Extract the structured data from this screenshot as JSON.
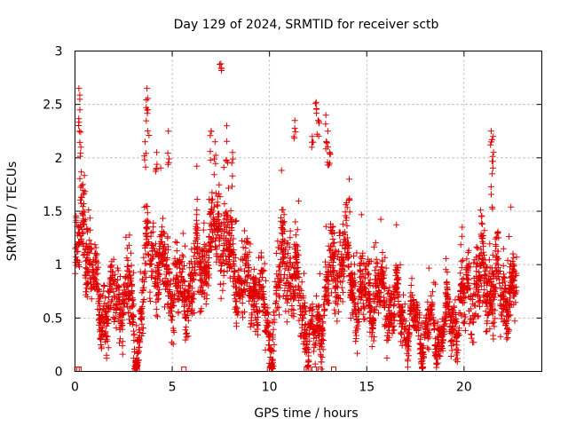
{
  "chart_data": {
    "type": "scatter",
    "title": "Day 129 of 2024, SRMTID for receiver sctb",
    "xlabel": "GPS time / hours",
    "ylabel": "SRMTID / TECUs",
    "xlim": [
      0,
      24
    ],
    "ylim": [
      0,
      3
    ],
    "x_ticks": [
      0,
      5,
      10,
      15,
      20
    ],
    "x_tick_labels": [
      "0",
      "5",
      "10",
      "15",
      "20"
    ],
    "y_ticks": [
      0,
      0.5,
      1,
      1.5,
      2,
      2.5,
      3
    ],
    "y_tick_labels": [
      "0",
      "0.5",
      "1",
      "1.5",
      "2",
      "2.5",
      "3"
    ],
    "grid": true,
    "marker": "plus",
    "series_color": "#e00000",
    "density_profile": [
      {
        "x": 0.0,
        "y": 1.0,
        "spread": 0.3
      },
      {
        "x": 0.5,
        "y": 1.35,
        "spread": 0.35
      },
      {
        "x": 1.2,
        "y": 0.55,
        "spread": 0.2
      },
      {
        "x": 2.0,
        "y": 0.65,
        "spread": 0.25
      },
      {
        "x": 2.8,
        "y": 0.75,
        "spread": 0.3
      },
      {
        "x": 3.1,
        "y": 0.15,
        "spread": 0.15
      },
      {
        "x": 3.8,
        "y": 1.1,
        "spread": 0.3
      },
      {
        "x": 4.5,
        "y": 0.95,
        "spread": 0.3
      },
      {
        "x": 5.5,
        "y": 0.7,
        "spread": 0.25
      },
      {
        "x": 6.5,
        "y": 1.0,
        "spread": 0.3
      },
      {
        "x": 7.5,
        "y": 1.3,
        "spread": 0.35
      },
      {
        "x": 8.5,
        "y": 0.8,
        "spread": 0.25
      },
      {
        "x": 9.5,
        "y": 0.75,
        "spread": 0.25
      },
      {
        "x": 10.0,
        "y": 0.3,
        "spread": 0.2
      },
      {
        "x": 10.8,
        "y": 1.1,
        "spread": 0.35
      },
      {
        "x": 11.5,
        "y": 0.7,
        "spread": 0.25
      },
      {
        "x": 12.3,
        "y": 0.25,
        "spread": 0.2
      },
      {
        "x": 13.0,
        "y": 0.8,
        "spread": 0.3
      },
      {
        "x": 13.8,
        "y": 1.1,
        "spread": 0.3
      },
      {
        "x": 14.5,
        "y": 0.65,
        "spread": 0.25
      },
      {
        "x": 15.5,
        "y": 0.7,
        "spread": 0.25
      },
      {
        "x": 16.5,
        "y": 0.6,
        "spread": 0.2
      },
      {
        "x": 17.5,
        "y": 0.4,
        "spread": 0.15
      },
      {
        "x": 18.5,
        "y": 0.35,
        "spread": 0.15
      },
      {
        "x": 19.5,
        "y": 0.5,
        "spread": 0.2
      },
      {
        "x": 20.5,
        "y": 0.8,
        "spread": 0.3
      },
      {
        "x": 21.3,
        "y": 0.9,
        "spread": 0.35
      },
      {
        "x": 22.0,
        "y": 0.7,
        "spread": 0.25
      },
      {
        "x": 22.7,
        "y": 0.75,
        "spread": 0.25
      }
    ],
    "highlights": [
      {
        "x": 0.2,
        "y": 2.65
      },
      {
        "x": 0.25,
        "y": 2.45
      },
      {
        "x": 0.3,
        "y": 2.1
      },
      {
        "x": 0.4,
        "y": 1.75
      },
      {
        "x": 3.6,
        "y": 2.15
      },
      {
        "x": 3.7,
        "y": 2.65
      },
      {
        "x": 3.75,
        "y": 2.45
      },
      {
        "x": 4.2,
        "y": 2.05
      },
      {
        "x": 4.8,
        "y": 2.25
      },
      {
        "x": 7.0,
        "y": 2.25
      },
      {
        "x": 7.2,
        "y": 2.15
      },
      {
        "x": 7.5,
        "y": 2.88
      },
      {
        "x": 7.8,
        "y": 2.3
      },
      {
        "x": 8.1,
        "y": 2.05
      },
      {
        "x": 11.3,
        "y": 2.35
      },
      {
        "x": 12.2,
        "y": 2.2
      },
      {
        "x": 12.4,
        "y": 2.52
      },
      {
        "x": 12.5,
        "y": 2.35
      },
      {
        "x": 12.9,
        "y": 2.4
      },
      {
        "x": 13.0,
        "y": 2.25
      },
      {
        "x": 13.1,
        "y": 2.05
      },
      {
        "x": 14.1,
        "y": 1.8
      },
      {
        "x": 21.4,
        "y": 2.25
      },
      {
        "x": 21.5,
        "y": 2.2
      },
      {
        "x": 21.45,
        "y": 1.85
      }
    ],
    "zeros": [
      0.1,
      0.2,
      3.1,
      3.2,
      5.6,
      10.0,
      11.9,
      12.0,
      12.3,
      12.6,
      13.3
    ]
  }
}
